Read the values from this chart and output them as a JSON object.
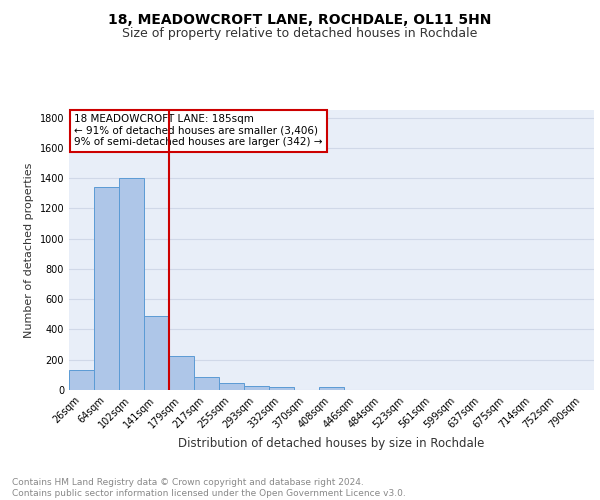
{
  "title1": "18, MEADOWCROFT LANE, ROCHDALE, OL11 5HN",
  "title2": "Size of property relative to detached houses in Rochdale",
  "xlabel": "Distribution of detached houses by size in Rochdale",
  "ylabel": "Number of detached properties",
  "bin_labels": [
    "26sqm",
    "64sqm",
    "102sqm",
    "141sqm",
    "179sqm",
    "217sqm",
    "255sqm",
    "293sqm",
    "332sqm",
    "370sqm",
    "408sqm",
    "446sqm",
    "484sqm",
    "523sqm",
    "561sqm",
    "599sqm",
    "637sqm",
    "675sqm",
    "714sqm",
    "752sqm",
    "790sqm"
  ],
  "bar_values": [
    135,
    1340,
    1400,
    490,
    225,
    85,
    47,
    28,
    20,
    0,
    17,
    0,
    0,
    0,
    0,
    0,
    0,
    0,
    0,
    0,
    0
  ],
  "bar_color": "#aec6e8",
  "bar_edge_color": "#5b9bd5",
  "vline_color": "#cc0000",
  "annotation_text": "18 MEADOWCROFT LANE: 185sqm\n← 91% of detached houses are smaller (3,406)\n9% of semi-detached houses are larger (342) →",
  "annotation_box_color": "#ffffff",
  "annotation_box_edge_color": "#cc0000",
  "ylim": [
    0,
    1850
  ],
  "yticks": [
    0,
    200,
    400,
    600,
    800,
    1000,
    1200,
    1400,
    1600,
    1800
  ],
  "grid_color": "#d0d8e8",
  "background_color": "#e8eef8",
  "footer_text": "Contains HM Land Registry data © Crown copyright and database right 2024.\nContains public sector information licensed under the Open Government Licence v3.0.",
  "title1_fontsize": 10,
  "title2_fontsize": 9,
  "xlabel_fontsize": 8.5,
  "ylabel_fontsize": 8,
  "tick_fontsize": 7,
  "annotation_fontsize": 7.5,
  "footer_fontsize": 6.5
}
